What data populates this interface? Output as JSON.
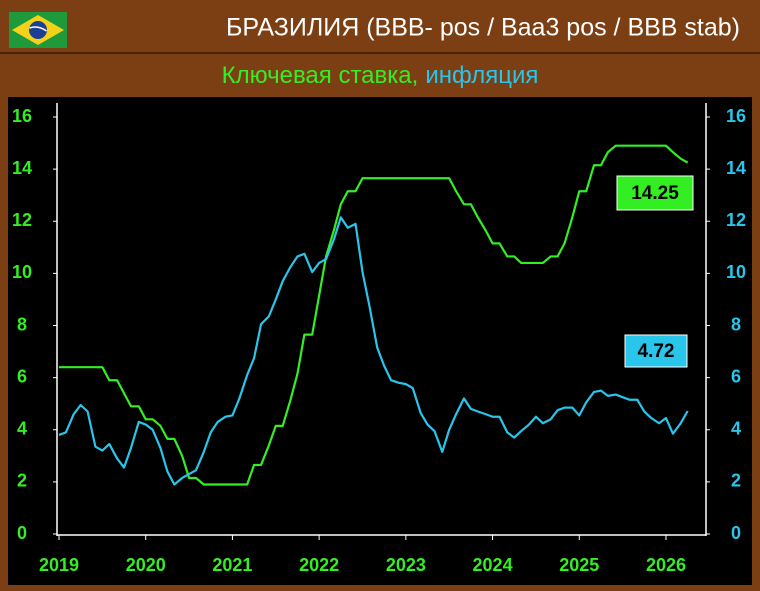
{
  "chart_data": {
    "type": "line",
    "title": "БРАЗИЛИЯ (BBB- pos / Baa3 pos / BBB stab)",
    "x": [
      2019,
      2019.08,
      2019.17,
      2019.25,
      2019.33,
      2019.42,
      2019.5,
      2019.58,
      2019.67,
      2019.75,
      2019.83,
      2019.92,
      2020,
      2020.08,
      2020.17,
      2020.25,
      2020.33,
      2020.42,
      2020.5,
      2020.58,
      2020.67,
      2020.75,
      2020.83,
      2020.92,
      2021,
      2021.08,
      2021.17,
      2021.25,
      2021.33,
      2021.42,
      2021.5,
      2021.58,
      2021.67,
      2021.75,
      2021.83,
      2021.92,
      2022,
      2022.08,
      2022.17,
      2022.25,
      2022.33,
      2022.42,
      2022.5,
      2022.58,
      2022.67,
      2022.75,
      2022.83,
      2022.92,
      2023,
      2023.08,
      2023.17,
      2023.25,
      2023.33,
      2023.42,
      2023.5,
      2023.58,
      2023.67,
      2023.75,
      2023.83,
      2023.92,
      2024,
      2024.08,
      2024.17,
      2024.25,
      2024.33,
      2024.42,
      2024.5,
      2024.58,
      2024.67,
      2024.75,
      2024.83,
      2024.92,
      2025,
      2025.08,
      2025.17,
      2025.25,
      2025.33,
      2025.42,
      2025.5,
      2025.58,
      2025.67,
      2025.75,
      2025.83,
      2025.92,
      2026,
      2026.08,
      2026.17,
      2026.25
    ],
    "series": [
      {
        "name": "Ключевая ставка,",
        "color": "#33ee22",
        "values": [
          6.4,
          6.4,
          6.4,
          6.4,
          6.4,
          6.4,
          6.4,
          5.9,
          5.9,
          5.4,
          4.9,
          4.9,
          4.4,
          4.4,
          4.15,
          3.65,
          3.65,
          3.0,
          2.15,
          2.15,
          1.9,
          1.9,
          1.9,
          1.9,
          1.9,
          1.9,
          1.9,
          2.65,
          2.65,
          3.4,
          4.15,
          4.15,
          5.15,
          6.15,
          7.65,
          7.65,
          9.15,
          10.65,
          11.65,
          12.65,
          13.15,
          13.15,
          13.65,
          13.65,
          13.65,
          13.65,
          13.65,
          13.65,
          13.65,
          13.65,
          13.65,
          13.65,
          13.65,
          13.65,
          13.65,
          13.15,
          12.65,
          12.65,
          12.15,
          11.65,
          11.15,
          11.15,
          10.65,
          10.65,
          10.4,
          10.4,
          10.4,
          10.4,
          10.65,
          10.65,
          11.15,
          12.15,
          13.15,
          13.15,
          14.15,
          14.15,
          14.65,
          14.9,
          14.9,
          14.9,
          14.9,
          14.9,
          14.9,
          14.9,
          14.9,
          14.65,
          14.4,
          14.25
        ],
        "value_labels": [
          null,
          null,
          null,
          null,
          null,
          null,
          null,
          null,
          null,
          null,
          null,
          null,
          null,
          null,
          null,
          null,
          null,
          null,
          null,
          null,
          null,
          null,
          null,
          null,
          null,
          null,
          null,
          null,
          null,
          null,
          null,
          null,
          null,
          null,
          null,
          null,
          null,
          null,
          null,
          null,
          null,
          null,
          null,
          null,
          null,
          null,
          null,
          null,
          null,
          null,
          null,
          null,
          null,
          null,
          null,
          null,
          null,
          null,
          null,
          null,
          null,
          null,
          null,
          null,
          null,
          null,
          null,
          null,
          null,
          null,
          null,
          null,
          null,
          null,
          null,
          null,
          null,
          null,
          null,
          null,
          null,
          null,
          null,
          null,
          null,
          null,
          null,
          "14.25"
        ]
      },
      {
        "name": "инфляция",
        "color": "#29c5ea",
        "axis": "y2",
        "values": [
          3.8,
          3.9,
          4.6,
          4.95,
          4.7,
          3.35,
          3.2,
          3.45,
          2.9,
          2.55,
          3.3,
          4.3,
          4.2,
          4.0,
          3.3,
          2.4,
          1.9,
          2.15,
          2.3,
          2.45,
          3.15,
          3.9,
          4.3,
          4.5,
          4.55,
          5.2,
          6.1,
          6.75,
          8.05,
          8.35,
          9.0,
          9.7,
          10.25,
          10.65,
          10.75,
          10.05,
          10.4,
          10.55,
          11.3,
          12.15,
          11.75,
          11.9,
          10.05,
          8.75,
          7.15,
          6.45,
          5.9,
          5.8,
          5.75,
          5.6,
          4.65,
          4.2,
          3.95,
          3.15,
          4.0,
          4.6,
          5.2,
          4.8,
          4.7,
          4.6,
          4.5,
          4.5,
          3.9,
          3.7,
          3.95,
          4.2,
          4.5,
          4.25,
          4.4,
          4.75,
          4.85,
          4.85,
          4.55,
          5.05,
          5.45,
          5.5,
          5.3,
          5.35,
          5.25,
          5.15,
          5.15,
          4.7,
          4.45,
          4.25,
          4.45,
          3.85,
          4.25,
          4.72
        ],
        "value_labels": [
          null,
          null,
          null,
          null,
          null,
          null,
          null,
          null,
          null,
          null,
          null,
          null,
          null,
          null,
          null,
          null,
          null,
          null,
          null,
          null,
          null,
          null,
          null,
          null,
          null,
          null,
          null,
          null,
          null,
          null,
          null,
          null,
          null,
          null,
          null,
          null,
          null,
          null,
          null,
          null,
          null,
          null,
          null,
          null,
          null,
          null,
          null,
          null,
          null,
          null,
          null,
          null,
          null,
          null,
          null,
          null,
          null,
          null,
          null,
          null,
          null,
          null,
          null,
          null,
          null,
          null,
          null,
          null,
          null,
          null,
          null,
          null,
          null,
          null,
          null,
          null,
          null,
          null,
          null,
          null,
          null,
          null,
          null,
          null,
          null,
          null,
          null,
          "4.72"
        ]
      }
    ],
    "xlim": [
      2019,
      2026.45
    ],
    "xticks": [
      2019,
      2020,
      2021,
      2022,
      2023,
      2024,
      2025,
      2026
    ],
    "ylim": [
      0,
      16
    ],
    "yticks": [
      0,
      2,
      4,
      6,
      8,
      10,
      12,
      14,
      16
    ],
    "y2lim": [
      0,
      16
    ],
    "y2ticks": [
      0,
      2,
      4,
      6,
      8,
      10,
      12,
      14,
      16
    ],
    "grid": false
  }
}
